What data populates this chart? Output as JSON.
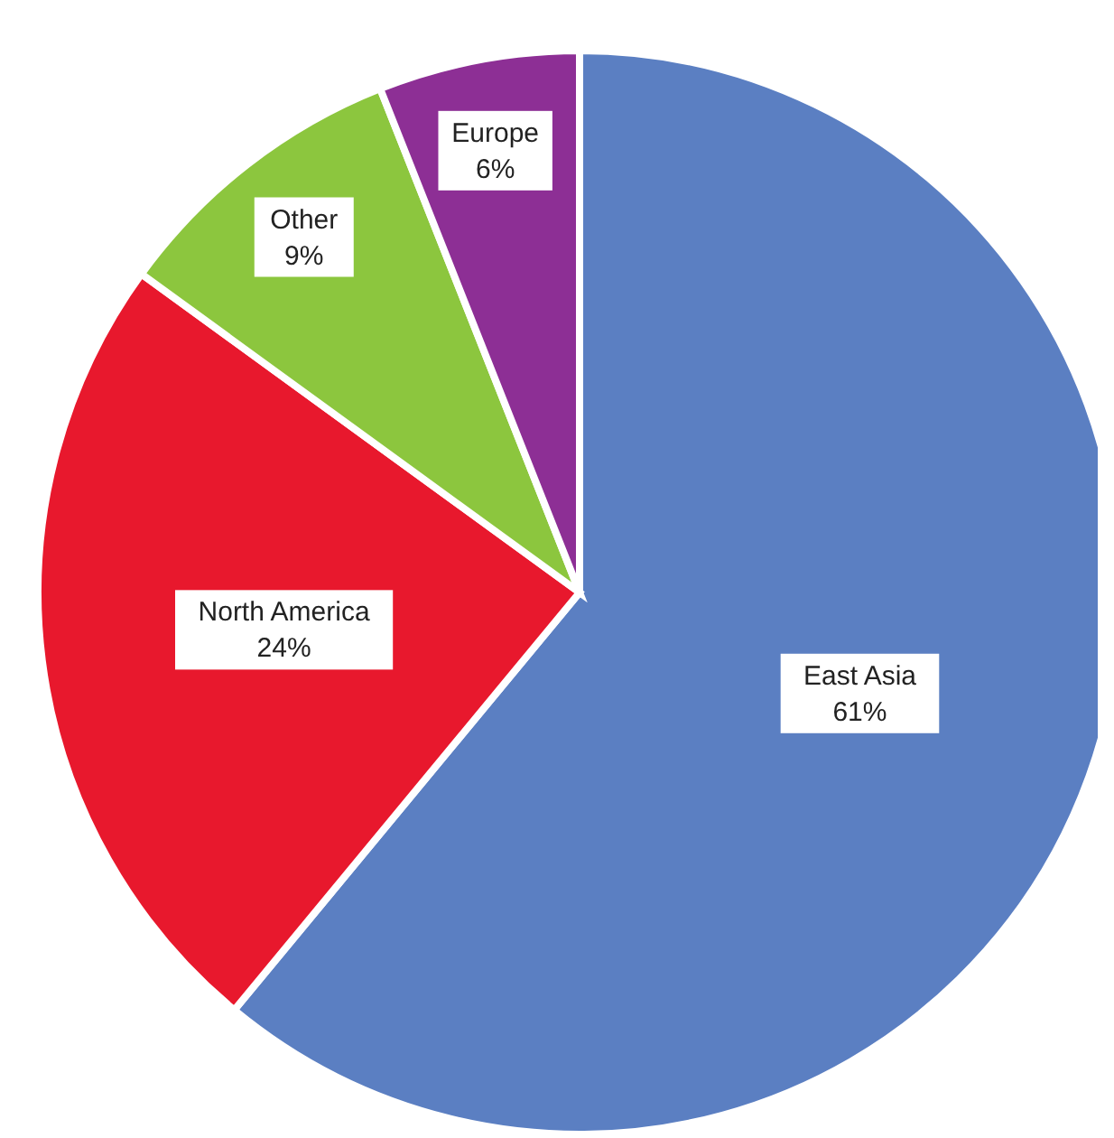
{
  "chart_data": {
    "type": "pie",
    "categories": [
      "East Asia",
      "North America",
      "Other",
      "Europe"
    ],
    "values": [
      61,
      24,
      9,
      6
    ],
    "value_labels": [
      "61%",
      "24%",
      "9%",
      "6%"
    ],
    "colors": [
      "#5b7fc2",
      "#e8182d",
      "#8cc63e",
      "#8d2f95"
    ]
  }
}
